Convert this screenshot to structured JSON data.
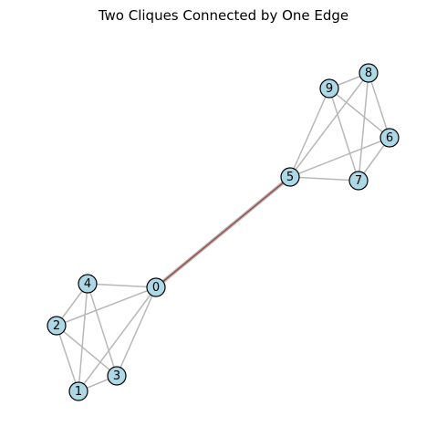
{
  "title": "Two Cliques Connected by One Edge",
  "graph": {
    "node_color": "#add8e6",
    "node_edge_color": "#000000",
    "edge_color": "#b8b8b8",
    "bridge_color": "#a0504b",
    "nodes": [
      {
        "id": "0"
      },
      {
        "id": "1"
      },
      {
        "id": "2"
      },
      {
        "id": "3"
      },
      {
        "id": "4"
      },
      {
        "id": "5"
      },
      {
        "id": "6"
      },
      {
        "id": "7"
      },
      {
        "id": "8"
      },
      {
        "id": "9"
      }
    ],
    "edges": [
      [
        "0",
        "1"
      ],
      [
        "0",
        "2"
      ],
      [
        "0",
        "3"
      ],
      [
        "0",
        "4"
      ],
      [
        "1",
        "2"
      ],
      [
        "1",
        "3"
      ],
      [
        "1",
        "4"
      ],
      [
        "2",
        "3"
      ],
      [
        "2",
        "4"
      ],
      [
        "3",
        "4"
      ],
      [
        "5",
        "6"
      ],
      [
        "5",
        "7"
      ],
      [
        "5",
        "8"
      ],
      [
        "5",
        "9"
      ],
      [
        "6",
        "7"
      ],
      [
        "6",
        "8"
      ],
      [
        "6",
        "9"
      ],
      [
        "7",
        "8"
      ],
      [
        "7",
        "9"
      ],
      [
        "8",
        "9"
      ]
    ],
    "bridge_edges": [
      [
        "0",
        "5"
      ]
    ]
  }
}
